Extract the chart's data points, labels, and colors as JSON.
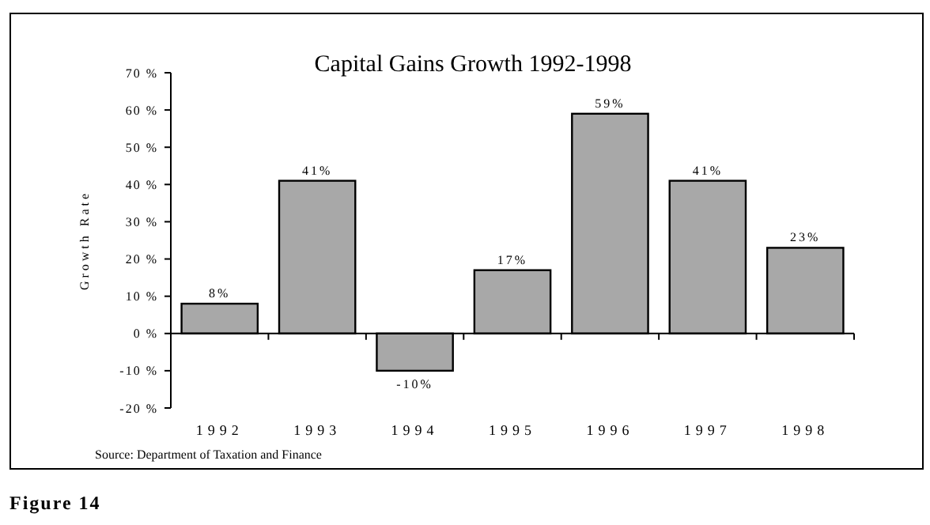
{
  "chart_data": {
    "type": "bar",
    "title": "Capital Gains Growth 1992-1998",
    "ylabel": "Growth Rate",
    "categories": [
      "1992",
      "1993",
      "1994",
      "1995",
      "1996",
      "1997",
      "1998"
    ],
    "values": [
      8,
      41,
      -10,
      17,
      59,
      41,
      23
    ],
    "color": "#a8a8a8",
    "value_labels": [
      "8%",
      "41%",
      "-10%",
      "17%",
      "59%",
      "41%",
      "23%"
    ],
    "ylim": [
      -20,
      70
    ],
    "yticks": [
      {
        "value": -20,
        "label": "-20 %"
      },
      {
        "value": -10,
        "label": "-10 %"
      },
      {
        "value": 0,
        "label": "0 %"
      },
      {
        "value": 10,
        "label": "10 %"
      },
      {
        "value": 20,
        "label": "20 %"
      },
      {
        "value": 30,
        "label": "30 %"
      },
      {
        "value": 40,
        "label": "40 %"
      },
      {
        "value": 50,
        "label": "50 %"
      },
      {
        "value": 60,
        "label": "60 %"
      },
      {
        "value": 70,
        "label": "70 %"
      }
    ],
    "annotations": [
      "Source: Department of Taxation and Finance",
      "Figure 14"
    ]
  }
}
